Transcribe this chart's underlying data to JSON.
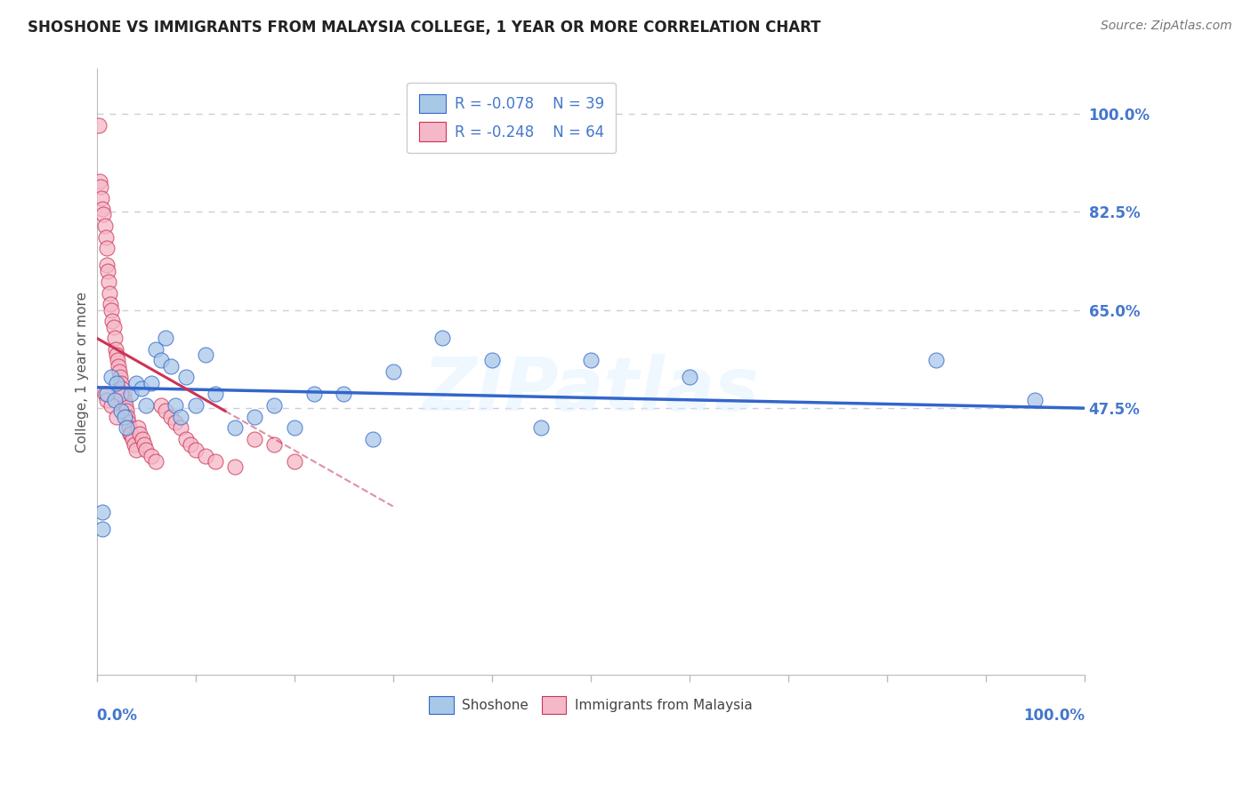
{
  "title": "SHOSHONE VS IMMIGRANTS FROM MALAYSIA COLLEGE, 1 YEAR OR MORE CORRELATION CHART",
  "source": "Source: ZipAtlas.com",
  "ylabel": "College, 1 year or more",
  "ylabel_right_labels": [
    "100.0%",
    "82.5%",
    "65.0%",
    "47.5%"
  ],
  "ylabel_right_positions": [
    1.0,
    0.825,
    0.65,
    0.475
  ],
  "xlim": [
    0.0,
    1.0
  ],
  "ylim": [
    0.0,
    1.08
  ],
  "legend_r1": "R = -0.078",
  "legend_n1": "N = 39",
  "legend_r2": "R = -0.248",
  "legend_n2": "N = 64",
  "blue_color": "#a8c8e8",
  "pink_color": "#f5b8c8",
  "line_blue_color": "#3366cc",
  "line_pink_color": "#cc3355",
  "grid_color": "#ccccdd",
  "axis_label_color": "#4477cc",
  "watermark": "ZIPatlas",
  "blue_scatter_x": [
    0.006,
    0.006,
    0.01,
    0.015,
    0.018,
    0.02,
    0.025,
    0.028,
    0.03,
    0.035,
    0.04,
    0.045,
    0.05,
    0.055,
    0.06,
    0.065,
    0.07,
    0.075,
    0.08,
    0.085,
    0.09,
    0.1,
    0.11,
    0.12,
    0.14,
    0.16,
    0.18,
    0.2,
    0.22,
    0.25,
    0.28,
    0.3,
    0.35,
    0.4,
    0.45,
    0.5,
    0.6,
    0.85,
    0.95
  ],
  "blue_scatter_y": [
    0.29,
    0.26,
    0.5,
    0.53,
    0.49,
    0.52,
    0.47,
    0.46,
    0.44,
    0.5,
    0.52,
    0.51,
    0.48,
    0.52,
    0.58,
    0.56,
    0.6,
    0.55,
    0.48,
    0.46,
    0.53,
    0.48,
    0.57,
    0.5,
    0.44,
    0.46,
    0.48,
    0.44,
    0.5,
    0.5,
    0.42,
    0.54,
    0.6,
    0.56,
    0.44,
    0.56,
    0.53,
    0.56,
    0.49
  ],
  "pink_scatter_x": [
    0.002,
    0.003,
    0.004,
    0.005,
    0.006,
    0.007,
    0.008,
    0.009,
    0.01,
    0.01,
    0.011,
    0.012,
    0.013,
    0.014,
    0.015,
    0.016,
    0.017,
    0.018,
    0.019,
    0.02,
    0.021,
    0.022,
    0.023,
    0.024,
    0.025,
    0.026,
    0.027,
    0.028,
    0.029,
    0.03,
    0.031,
    0.032,
    0.033,
    0.034,
    0.035,
    0.036,
    0.038,
    0.04,
    0.042,
    0.044,
    0.046,
    0.048,
    0.05,
    0.055,
    0.06,
    0.065,
    0.07,
    0.075,
    0.08,
    0.085,
    0.09,
    0.095,
    0.1,
    0.11,
    0.12,
    0.14,
    0.16,
    0.18,
    0.2,
    0.025,
    0.008,
    0.01,
    0.015,
    0.02
  ],
  "pink_scatter_y": [
    0.98,
    0.88,
    0.87,
    0.85,
    0.83,
    0.82,
    0.8,
    0.78,
    0.76,
    0.73,
    0.72,
    0.7,
    0.68,
    0.66,
    0.65,
    0.63,
    0.62,
    0.6,
    0.58,
    0.57,
    0.56,
    0.55,
    0.54,
    0.53,
    0.52,
    0.51,
    0.5,
    0.49,
    0.48,
    0.47,
    0.46,
    0.45,
    0.44,
    0.43,
    0.43,
    0.42,
    0.41,
    0.4,
    0.44,
    0.43,
    0.42,
    0.41,
    0.4,
    0.39,
    0.38,
    0.48,
    0.47,
    0.46,
    0.45,
    0.44,
    0.42,
    0.41,
    0.4,
    0.39,
    0.38,
    0.37,
    0.42,
    0.41,
    0.38,
    0.5,
    0.5,
    0.49,
    0.48,
    0.46
  ]
}
